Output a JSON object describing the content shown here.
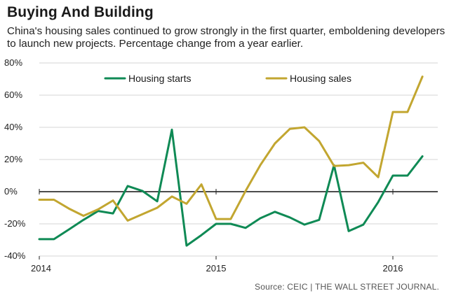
{
  "header": {
    "title": "Buying And Building",
    "subtitle": "China's housing sales continued to grow strongly in the first quarter, emboldening developers to launch new projects. Percentage change from a year earlier."
  },
  "footer": {
    "source": "Source: CEIC  |  THE WALL STREET JOURNAL."
  },
  "colors": {
    "housing_starts": "#0f8a55",
    "housing_sales": "#c2a630",
    "zero_line": "#111111",
    "grid": "#d6d6d6"
  },
  "chart_data": {
    "type": "line",
    "title": "Buying And Building",
    "xlabel": "",
    "ylabel": "",
    "ylim": [
      -40,
      80
    ],
    "y_ticks": [
      80,
      60,
      40,
      20,
      0,
      -20,
      -40
    ],
    "y_tick_labels": [
      "80%",
      "60%",
      "40%",
      "20%",
      "0%",
      "-20%",
      "-40%"
    ],
    "x_range": [
      2014.0,
      2016.25
    ],
    "x_ticks": [
      2014,
      2015,
      2016
    ],
    "x_tick_labels": [
      "2014",
      "2015",
      "2016"
    ],
    "grid": "horizontal",
    "legend_position": "top",
    "series": [
      {
        "name": "Housing starts",
        "color": "#0f8a55",
        "x": [
          2014.0,
          2014.083,
          2014.167,
          2014.25,
          2014.333,
          2014.417,
          2014.5,
          2014.583,
          2014.667,
          2014.75,
          2014.833,
          2014.917,
          2015.0,
          2015.083,
          2015.167,
          2015.25,
          2015.333,
          2015.417,
          2015.5,
          2015.583,
          2015.667,
          2015.75,
          2015.833,
          2015.917,
          2016.0,
          2016.083,
          2016.167
        ],
        "values": [
          -29.5,
          -29.5,
          -23.5,
          -17.5,
          -12,
          -13.5,
          3.5,
          0.5,
          -6,
          38.5,
          -33.5,
          -27,
          -20,
          -20,
          -22.5,
          -16.5,
          -12.5,
          -16,
          -20.5,
          -17.5,
          16.5,
          -24.5,
          -20.5,
          -6.5,
          10,
          10,
          22
        ]
      },
      {
        "name": "Housing sales",
        "color": "#c2a630",
        "x": [
          2014.0,
          2014.083,
          2014.167,
          2014.25,
          2014.333,
          2014.417,
          2014.5,
          2014.583,
          2014.667,
          2014.75,
          2014.833,
          2014.917,
          2015.0,
          2015.083,
          2015.167,
          2015.25,
          2015.333,
          2015.417,
          2015.5,
          2015.583,
          2015.667,
          2015.75,
          2015.833,
          2015.917,
          2016.0,
          2016.083,
          2016.167
        ],
        "values": [
          -5,
          -5,
          -10.5,
          -15,
          -11,
          -5.5,
          -18,
          -14,
          -10,
          -3,
          -7.5,
          4.5,
          -17,
          -17,
          0.5,
          16.5,
          30,
          39,
          40,
          31.5,
          16,
          16.5,
          18,
          9,
          49.5,
          49.5,
          71.5
        ]
      }
    ]
  }
}
